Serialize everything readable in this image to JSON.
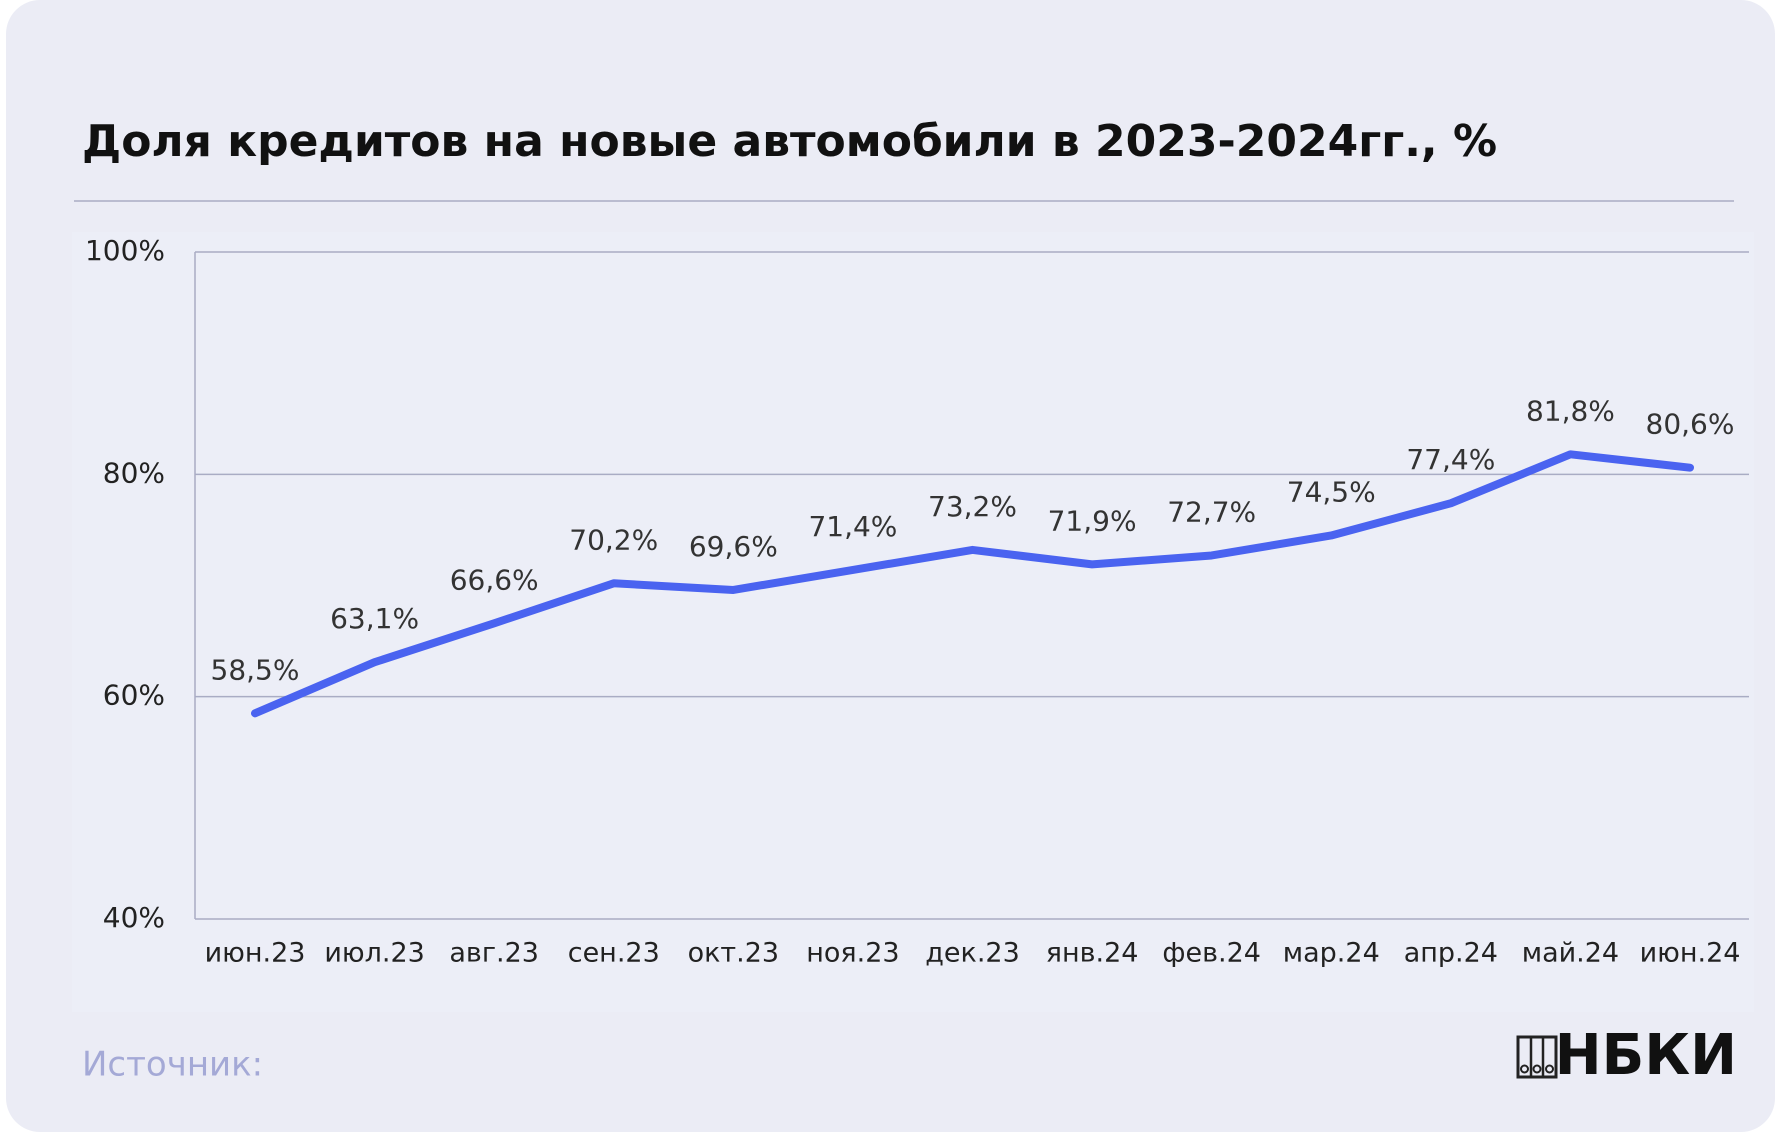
{
  "chart_data": {
    "type": "line",
    "title": "Доля кредитов на новые автомобили в 2023-2024гг., %",
    "categories": [
      "июн.23",
      "июл.23",
      "авг.23",
      "сен.23",
      "окт.23",
      "ноя.23",
      "дек.23",
      "янв.24",
      "фев.24",
      "мар.24",
      "апр.24",
      "май.24",
      "июн.24"
    ],
    "series": [
      {
        "color": "#4a63f0",
        "values": [
          58.5,
          63.1,
          66.6,
          70.2,
          69.6,
          71.4,
          73.2,
          71.9,
          72.7,
          74.5,
          77.4,
          81.8,
          80.6
        ],
        "value_labels": [
          "58,5%",
          "63,1%",
          "66,6%",
          "70,2%",
          "69,6%",
          "71,4%",
          "73,2%",
          "71,9%",
          "72,7%",
          "74,5%",
          "77,4%",
          "81,8%",
          "80,6%"
        ]
      }
    ],
    "ylim": [
      40,
      100
    ],
    "yticks": [
      {
        "value": 40,
        "label": "40%"
      },
      {
        "value": 60,
        "label": "60%"
      },
      {
        "value": 80,
        "label": "80%"
      },
      {
        "value": 100,
        "label": "100%"
      }
    ],
    "grid": true
  },
  "footer": {
    "source": "Источник:",
    "logo": "НБКИ"
  }
}
